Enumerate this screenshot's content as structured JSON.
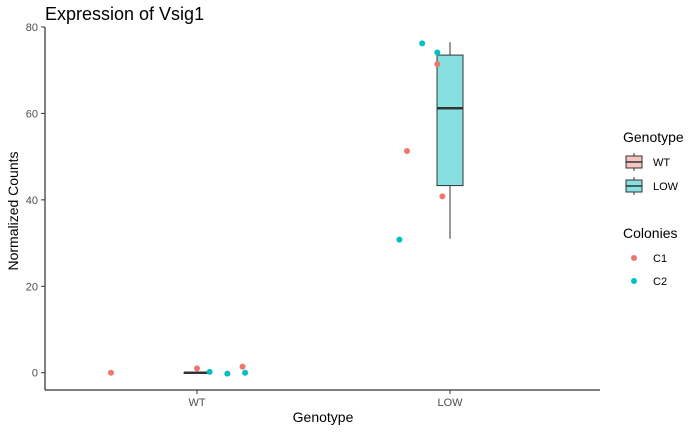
{
  "chart_data": {
    "type": "boxplot-with-points",
    "title": "Expression of Vsig1",
    "xlabel": "Genotype",
    "ylabel": "Normalized Counts",
    "categories": [
      "WT",
      "LOW"
    ],
    "ylim": [
      -4,
      80
    ],
    "yticks": [
      0,
      20,
      40,
      60,
      80
    ],
    "boxes": [
      {
        "category": "WT",
        "min": 0,
        "q1": 0,
        "median": 0,
        "q3": 0,
        "max": 0,
        "fill": "#f8c4bf"
      },
      {
        "category": "LOW",
        "min": 31,
        "q1": 43.3,
        "median": 61.2,
        "q3": 73.5,
        "max": 76.5,
        "fill": "#86dfe1"
      }
    ],
    "points": [
      {
        "category": "WT",
        "offset": -0.34,
        "y": 0.0,
        "colony": "C1"
      },
      {
        "category": "WT",
        "offset": 0.0,
        "y": 1.0,
        "colony": "C1"
      },
      {
        "category": "WT",
        "offset": 0.05,
        "y": 0.2,
        "colony": "C2"
      },
      {
        "category": "WT",
        "offset": 0.12,
        "y": -0.2,
        "colony": "C2"
      },
      {
        "category": "WT",
        "offset": 0.18,
        "y": 1.4,
        "colony": "C1"
      },
      {
        "category": "WT",
        "offset": 0.19,
        "y": 0.0,
        "colony": "C2"
      },
      {
        "category": "LOW",
        "offset": -0.2,
        "y": 30.8,
        "colony": "C2"
      },
      {
        "category": "LOW",
        "offset": -0.17,
        "y": 51.3,
        "colony": "C1"
      },
      {
        "category": "LOW",
        "offset": -0.11,
        "y": 76.2,
        "colony": "C2"
      },
      {
        "category": "LOW",
        "offset": -0.05,
        "y": 71.4,
        "colony": "C1"
      },
      {
        "category": "LOW",
        "offset": -0.05,
        "y": 74.1,
        "colony": "C2"
      },
      {
        "category": "LOW",
        "offset": -0.03,
        "y": 40.8,
        "colony": "C1"
      }
    ],
    "legend": {
      "placement": "right",
      "genotype": {
        "title": "Genotype",
        "items": [
          {
            "label": "WT",
            "color": "#f8c4bf"
          },
          {
            "label": "LOW",
            "color": "#86dfe1"
          }
        ]
      },
      "colonies": {
        "title": "Colonies",
        "items": [
          {
            "label": "C1",
            "color": "#f0766c"
          },
          {
            "label": "C2",
            "color": "#00bfc4"
          }
        ]
      }
    },
    "colors": {
      "C1": "#f0766c",
      "C2": "#00bfc4",
      "box_line": "#333333"
    }
  }
}
